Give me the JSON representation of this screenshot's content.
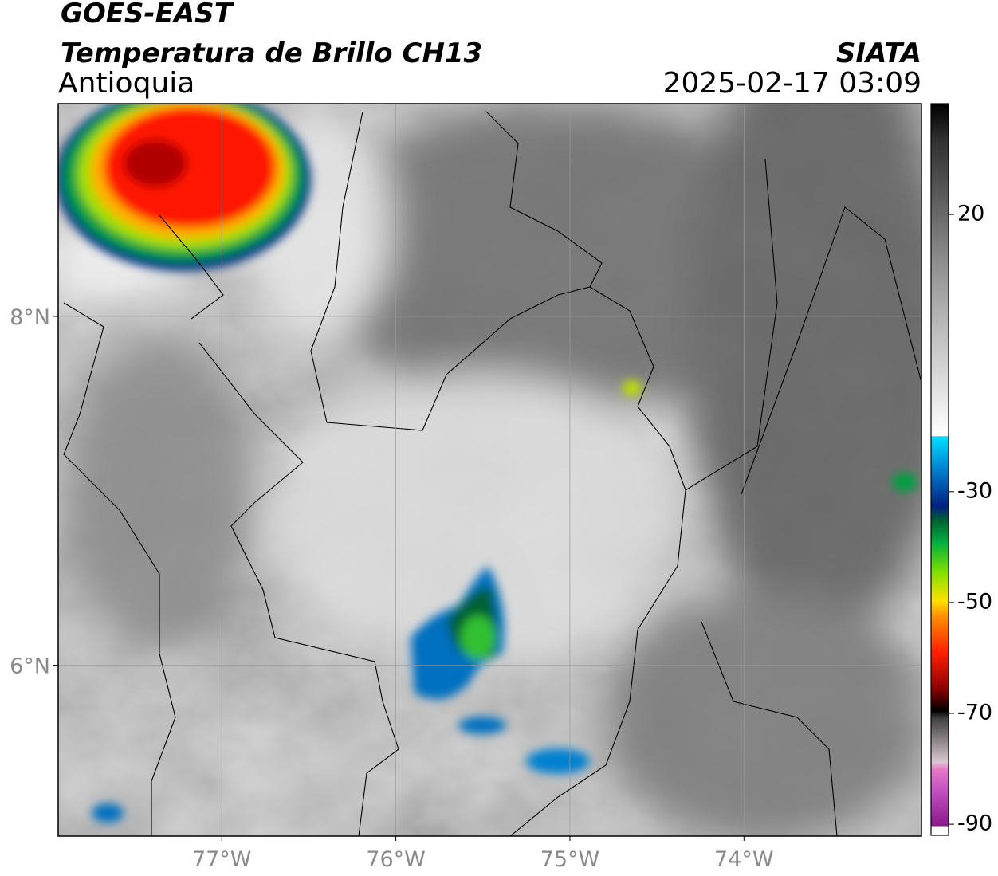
{
  "header": {
    "satellite": "GOES-EAST",
    "product": "Temperatura de Brillo CH13",
    "region": "Antioquia",
    "source": "SIATA",
    "timestamp": "2025-02-17 03:09"
  },
  "map": {
    "xlim": [
      -77.94,
      -72.98
    ],
    "ylim": [
      5.02,
      9.22
    ],
    "xticks": [
      {
        "value": -77,
        "label": "77°W"
      },
      {
        "value": -76,
        "label": "76°W"
      },
      {
        "value": -75,
        "label": "75°W"
      },
      {
        "value": -74,
        "label": "74°W"
      }
    ],
    "yticks": [
      {
        "value": 8,
        "label": "8°N"
      },
      {
        "value": 6,
        "label": "6°N"
      }
    ],
    "grid": true
  },
  "colorbar": {
    "lim": [
      -92,
      40
    ],
    "ticks": [
      20,
      -30,
      -50,
      -70,
      -90
    ]
  }
}
